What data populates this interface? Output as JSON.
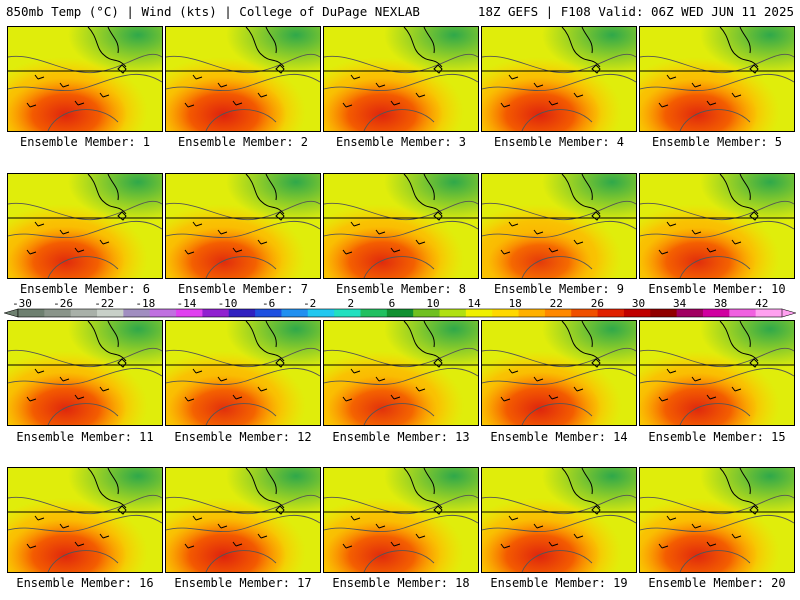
{
  "header": {
    "left": "850mb Temp (°C) | Wind (kts) | College of DuPage NEXLAB",
    "right": "18Z GEFS | F108 Valid: 06Z WED JUN 11 2025"
  },
  "panels": [
    {
      "label": "Ensemble Member: 1",
      "hot": 0.7
    },
    {
      "label": "Ensemble Member: 2",
      "hot": 0.75
    },
    {
      "label": "Ensemble Member: 3",
      "hot": 0.7
    },
    {
      "label": "Ensemble Member: 4",
      "hot": 0.72
    },
    {
      "label": "Ensemble Member: 5",
      "hot": 0.65
    },
    {
      "label": "Ensemble Member: 6",
      "hot": 0.62
    },
    {
      "label": "Ensemble Member: 7",
      "hot": 0.6
    },
    {
      "label": "Ensemble Member: 8",
      "hot": 0.62
    },
    {
      "label": "Ensemble Member: 9",
      "hot": 0.4
    },
    {
      "label": "Ensemble Member: 10",
      "hot": 0.58
    },
    {
      "label": "Ensemble Member: 11",
      "hot": 0.68
    },
    {
      "label": "Ensemble Member: 12",
      "hot": 0.55
    },
    {
      "label": "Ensemble Member: 13",
      "hot": 0.52
    },
    {
      "label": "Ensemble Member: 14",
      "hot": 0.7
    },
    {
      "label": "Ensemble Member: 15",
      "hot": 0.65
    },
    {
      "label": "Ensemble Member: 16",
      "hot": 0.68
    },
    {
      "label": "Ensemble Member: 17",
      "hot": 0.74
    },
    {
      "label": "Ensemble Member: 18",
      "hot": 0.62
    },
    {
      "label": "Ensemble Member: 19",
      "hot": 0.7
    },
    {
      "label": "Ensemble Member: 20",
      "hot": 0.65
    }
  ],
  "colorbar": {
    "ticks": [
      "-30",
      "-26",
      "-22",
      "-18",
      "-14",
      "-10",
      "-6",
      "-2",
      "2",
      "6",
      "10",
      "14",
      "18",
      "22",
      "26",
      "30",
      "34",
      "38",
      "42"
    ],
    "colors": [
      "#6e8070",
      "#8a958a",
      "#a8b0a8",
      "#c8d0c8",
      "#a08ec0",
      "#c070e0",
      "#e040f0",
      "#9020d0",
      "#3020c0",
      "#1e50e0",
      "#2090f0",
      "#20c8f0",
      "#20e0c0",
      "#20c060",
      "#109030",
      "#70c020",
      "#b0e010",
      "#f0f000",
      "#ffd800",
      "#ffb000",
      "#ff8800",
      "#f05000",
      "#e02000",
      "#c00000",
      "#900000",
      "#a00060",
      "#d000a0",
      "#f060e0",
      "#ffa0f0"
    ]
  }
}
